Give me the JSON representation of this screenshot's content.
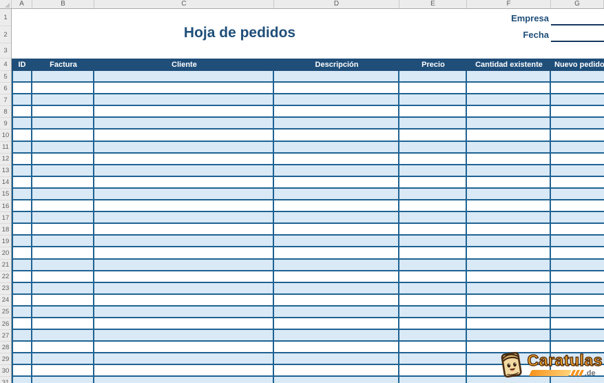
{
  "sheet_title": "Hoja de pedidos",
  "form": {
    "empresa_label": "Empresa",
    "empresa_value": "",
    "fecha_label": "Fecha",
    "fecha_value": ""
  },
  "spreadsheet": {
    "column_letters": [
      "A",
      "B",
      "C",
      "D",
      "E",
      "F",
      "G"
    ],
    "row_numbers": [
      1,
      2,
      3,
      4,
      5,
      6,
      7,
      8,
      9,
      10,
      11,
      12,
      13,
      14,
      15,
      16,
      17,
      18,
      19,
      20,
      21,
      22,
      23,
      24,
      25,
      26,
      27,
      28,
      29,
      30,
      31
    ]
  },
  "table": {
    "headers": [
      "ID",
      "Factura",
      "Cliente",
      "Descripción",
      "Precio",
      "Cantidad existente",
      "Nuevo pedido"
    ],
    "first_data_row": 5,
    "last_data_row": 31,
    "cell_values": []
  },
  "watermark": {
    "brand": "Caratulas",
    "suffix": ".de"
  },
  "colors": {
    "header_bg": "#1F4E79",
    "accent_text": "#1F4E79",
    "row_alt": "#D9E9F6",
    "grid_border": "#1E6292",
    "logo_orange": "#FFAE2D"
  }
}
